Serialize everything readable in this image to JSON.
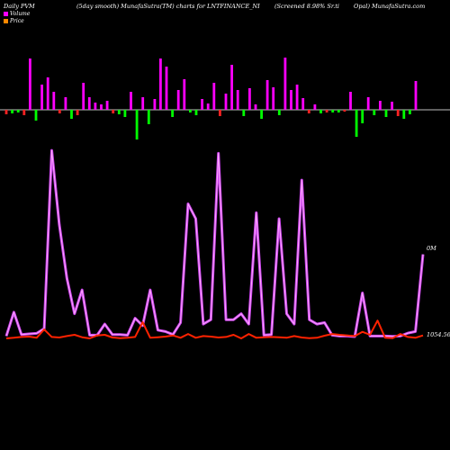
{
  "header": {
    "left": "Daily PVM",
    "center_left": "(5day smooth) MunafaSutra(TM) charts for LNTFINANCE_NI",
    "center_right": "(Screened 8.98% Sr.ti",
    "right": "Opal) MunafaSutra.com"
  },
  "legend": [
    {
      "label": "Volume",
      "color": "#ff00ff"
    },
    {
      "label": "Price",
      "color": "#ff8800"
    }
  ],
  "labels": {
    "volume_axis": "0M",
    "price_axis": "1054.56"
  },
  "colors": {
    "background": "#000000",
    "volume_line": "#cc44ee",
    "volume_line_inner": "#ffaaff",
    "price_line": "#ff2200",
    "bar_up": "#ff00ff",
    "bar_down": "#00ff00",
    "bar_red": "#ff2222",
    "axis": "#ffffff"
  },
  "chart_data": [
    {
      "type": "bar",
      "name": "pvm-bars",
      "values": [
        -5,
        -4,
        -3,
        -6,
        57,
        -12,
        28,
        36,
        20,
        -4,
        14,
        -10,
        -6,
        30,
        14,
        8,
        6,
        10,
        -4,
        -5,
        -8,
        20,
        -33,
        14,
        -16,
        12,
        57,
        48,
        -8,
        22,
        34,
        -3,
        -6,
        12,
        7,
        30,
        -7,
        18,
        50,
        22,
        -7,
        24,
        6,
        -10,
        33,
        25,
        -6,
        58,
        22,
        28,
        13,
        -4,
        6,
        -4,
        -3,
        -3,
        -3,
        -2,
        20,
        -30,
        -15,
        14,
        -6,
        10,
        -8,
        9,
        -7,
        -10,
        -5,
        32
      ]
    },
    {
      "type": "line",
      "name": "volume-line",
      "values": [
        0.5,
        8.5,
        1.0,
        1.2,
        1.4,
        3.0,
        63,
        38,
        20,
        8,
        16,
        0.8,
        0.8,
        4.5,
        1.0,
        1.0,
        0.8,
        6.5,
        4.0,
        16,
        2.5,
        2.0,
        1.0,
        5.0,
        45,
        40,
        4.5,
        6.0,
        62,
        6.0,
        6.0,
        8.0,
        4.5,
        42,
        0.8,
        1.0,
        40,
        8.0,
        4.5,
        53,
        6.0,
        4.5,
        5.0,
        0.8,
        0.5,
        0.5,
        0.3,
        15,
        0.5,
        0.5,
        0.5,
        0.4,
        0.5,
        1.5,
        2.0,
        28
      ]
    },
    {
      "type": "line",
      "name": "price-line",
      "values": [
        0.0,
        0.2,
        0.5,
        0.6,
        0.2,
        3.0,
        0.5,
        0.3,
        0.8,
        1.2,
        0.4,
        0.0,
        1.0,
        1.2,
        0.3,
        0.1,
        0.2,
        0.5,
        5.5,
        0.2,
        0.4,
        0.6,
        1.0,
        0.2,
        1.5,
        0.2,
        0.8,
        0.6,
        0.3,
        0.5,
        1.2,
        0.0,
        1.5,
        0.2,
        0.4,
        0.5,
        0.4,
        0.2,
        0.8,
        0.3,
        0.1,
        0.2,
        0.9,
        1.5,
        1.2,
        1.0,
        0.8,
        2.2,
        1.2,
        6.0,
        0.2,
        0.1,
        1.5,
        0.5,
        0.2,
        1.0
      ]
    }
  ]
}
